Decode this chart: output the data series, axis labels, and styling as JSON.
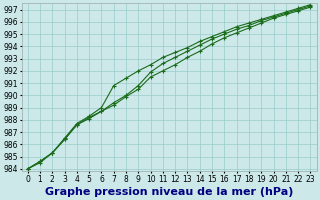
{
  "title": "Graphe pression niveau de la mer (hPa)",
  "x": [
    0,
    1,
    2,
    3,
    4,
    5,
    6,
    7,
    8,
    9,
    10,
    11,
    12,
    13,
    14,
    15,
    16,
    17,
    18,
    19,
    20,
    21,
    22,
    23
  ],
  "line1": [
    984.0,
    984.5,
    985.3,
    986.4,
    987.6,
    988.1,
    988.7,
    989.2,
    989.9,
    990.5,
    991.5,
    992.0,
    992.5,
    993.1,
    993.6,
    994.2,
    994.7,
    995.1,
    995.5,
    995.9,
    996.3,
    996.6,
    996.9,
    997.2
  ],
  "line2": [
    984.0,
    984.6,
    985.3,
    986.5,
    987.7,
    988.3,
    989.0,
    990.8,
    991.4,
    992.0,
    992.5,
    993.1,
    993.5,
    993.9,
    994.4,
    994.8,
    995.2,
    995.6,
    995.9,
    996.2,
    996.5,
    996.8,
    997.1,
    997.4
  ],
  "line3": [
    984.0,
    984.6,
    985.3,
    986.4,
    987.6,
    988.2,
    988.7,
    989.4,
    990.0,
    990.8,
    991.9,
    992.6,
    993.1,
    993.6,
    994.1,
    994.6,
    995.0,
    995.4,
    995.7,
    996.1,
    996.4,
    996.7,
    997.0,
    997.3
  ],
  "bg_color": "#cce8e8",
  "grid_color": "#99cccc",
  "line_color": "#1a6b1a",
  "marker": "+",
  "marker_size": 3,
  "marker_lw": 0.8,
  "line_width": 0.8,
  "ylim": [
    983.8,
    997.5
  ],
  "yticks": [
    984,
    985,
    986,
    987,
    988,
    989,
    990,
    991,
    992,
    993,
    994,
    995,
    996,
    997
  ],
  "xticks": [
    0,
    1,
    2,
    3,
    4,
    5,
    6,
    7,
    8,
    9,
    10,
    11,
    12,
    13,
    14,
    15,
    16,
    17,
    18,
    19,
    20,
    21,
    22,
    23
  ],
  "title_fontsize": 8,
  "tick_fontsize": 5.5,
  "title_color": "#000080",
  "title_fontweight": "bold"
}
